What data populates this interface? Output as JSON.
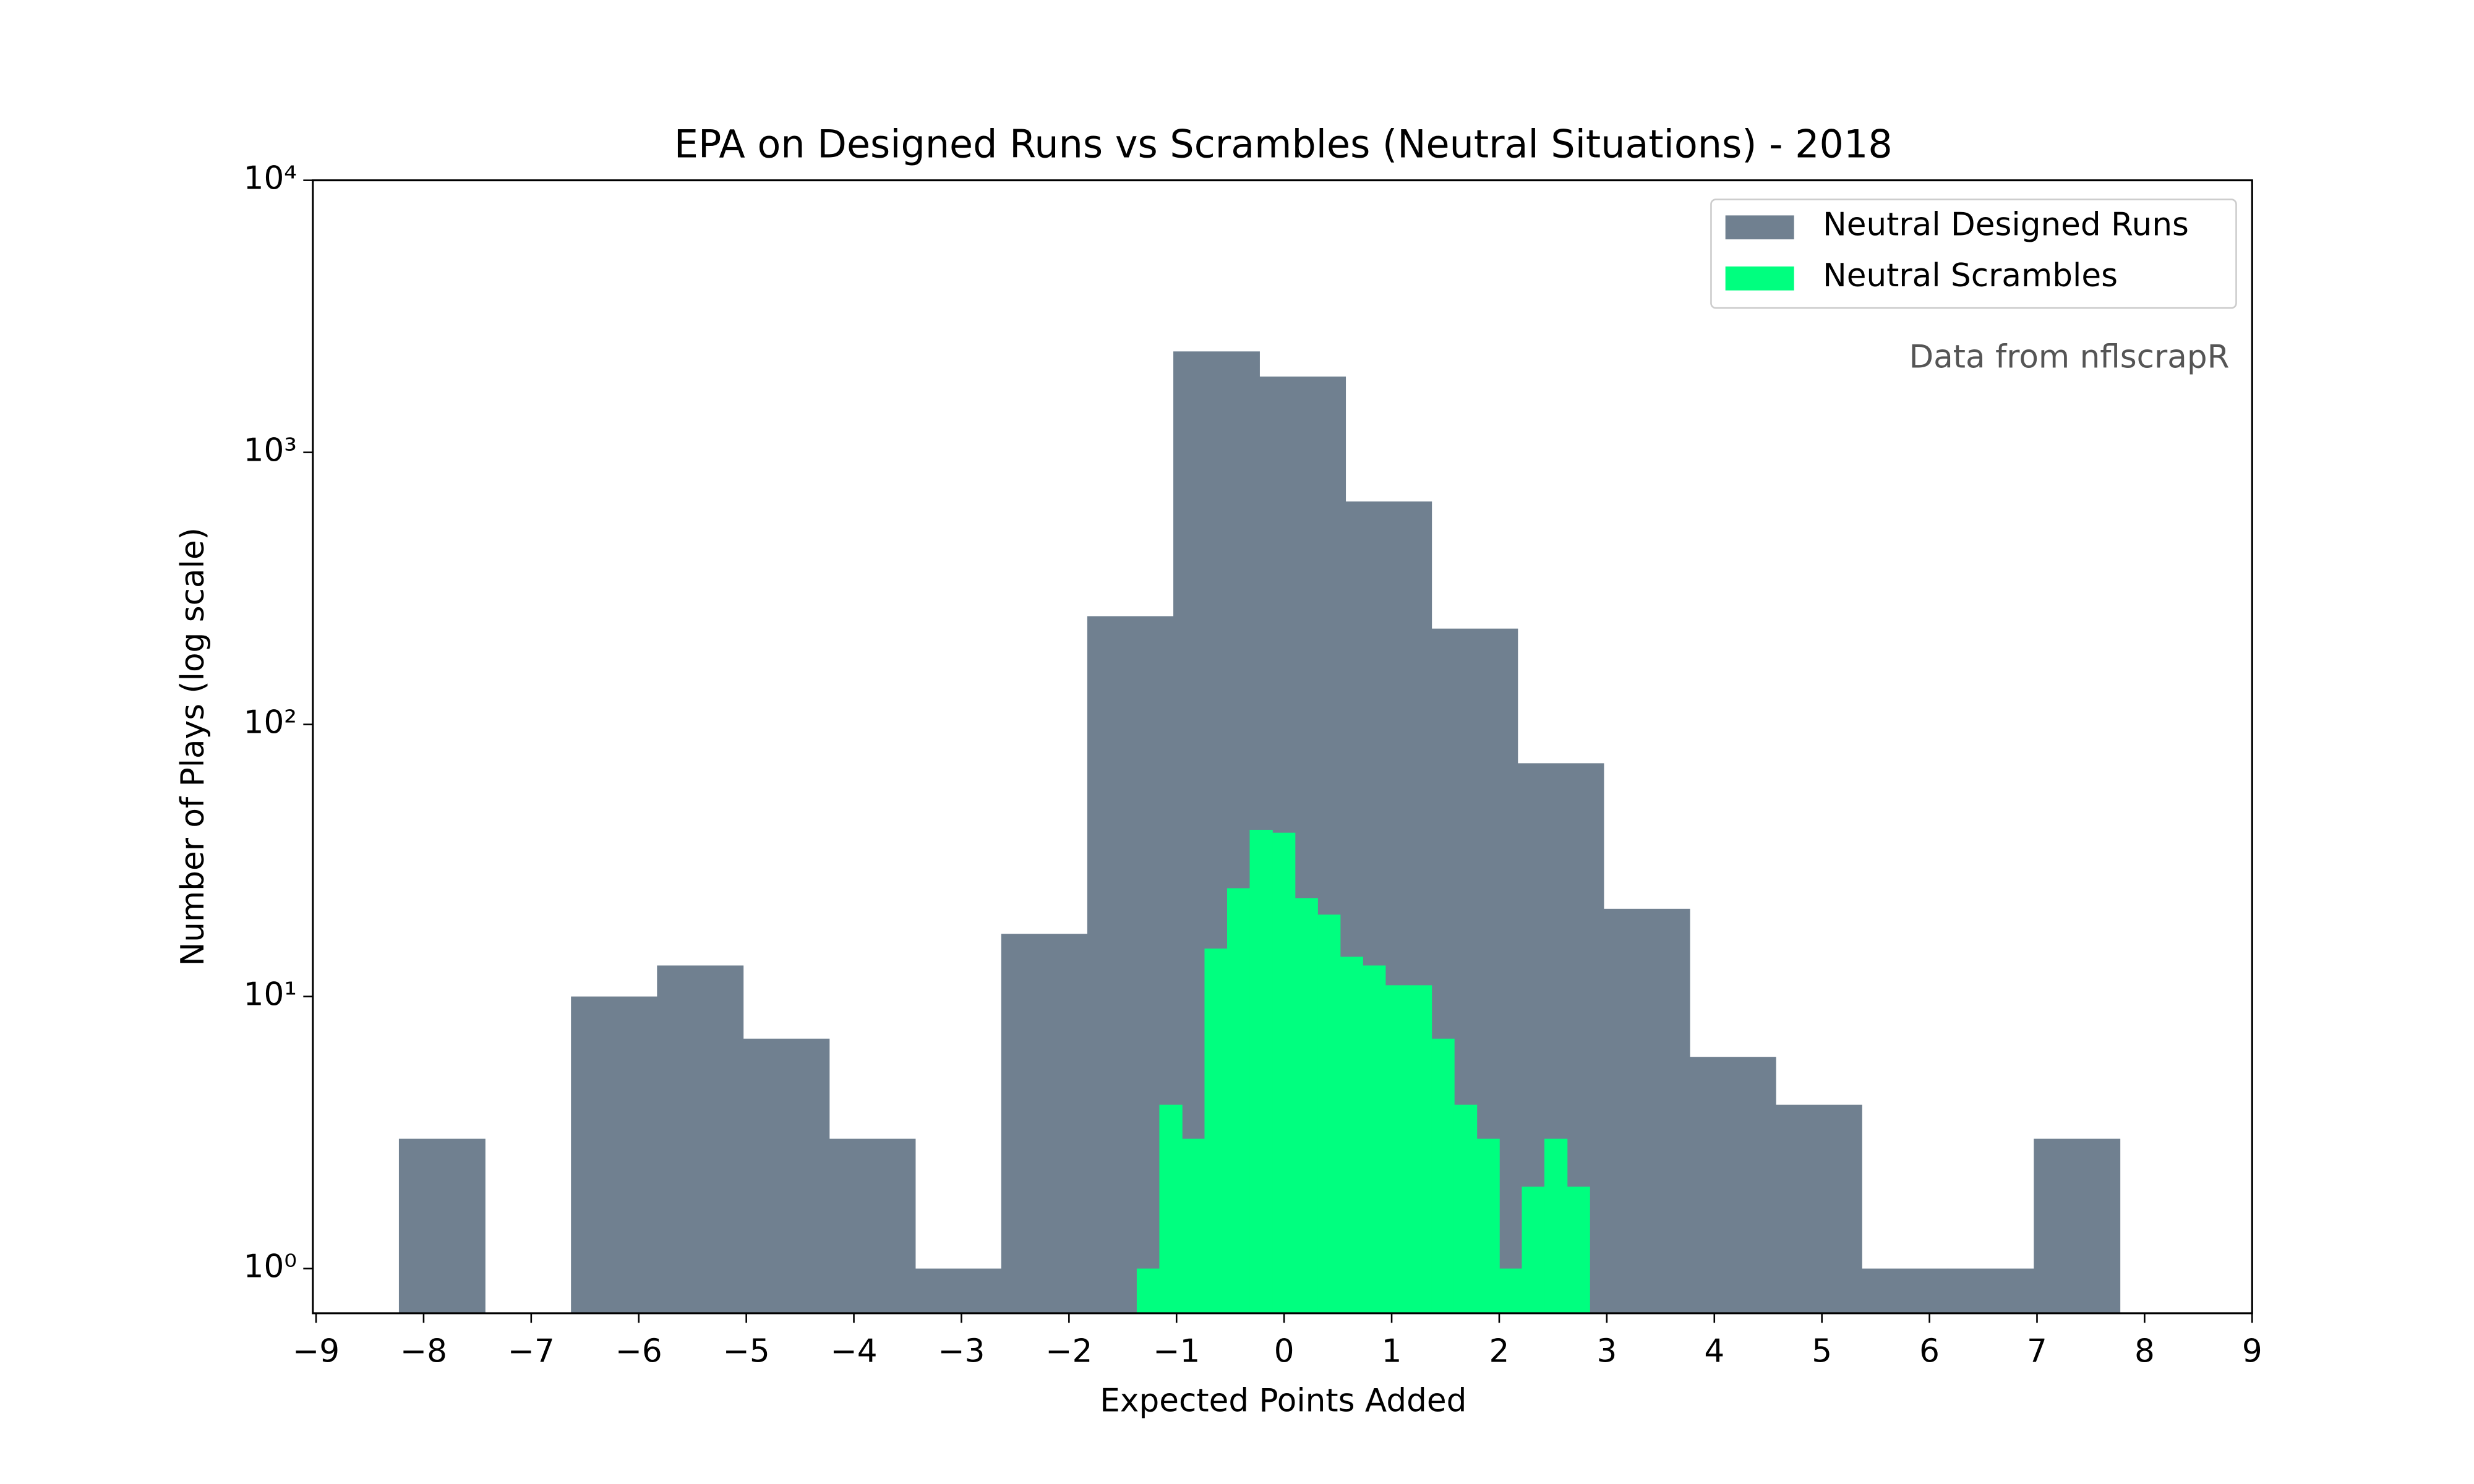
{
  "chart_data": {
    "type": "histogram",
    "title": "EPA on Designed Runs vs Scrambles (Neutral Situations) - 2018",
    "xlabel": "Expected Points Added",
    "ylabel": "Number of Plays (log scale)",
    "annotation": "Data from nflscrapR",
    "yscale": "log",
    "legend": "upper right",
    "xlim": [
      -9.03,
      9.0
    ],
    "ylim": [
      0.685,
      10000
    ],
    "xticks": [
      {
        "value": -9,
        "label": "−9"
      },
      {
        "value": -8,
        "label": "−8"
      },
      {
        "value": -7,
        "label": "−7"
      },
      {
        "value": -6,
        "label": "−6"
      },
      {
        "value": -5,
        "label": "−5"
      },
      {
        "value": -4,
        "label": "−4"
      },
      {
        "value": -3,
        "label": "−3"
      },
      {
        "value": -2,
        "label": "−2"
      },
      {
        "value": -1,
        "label": "−1"
      },
      0,
      1,
      2,
      3,
      4,
      5,
      6,
      7,
      8,
      9
    ],
    "yticks": [
      {
        "value": 1,
        "label": "10⁰"
      },
      {
        "value": 10,
        "label": "10¹"
      },
      {
        "value": 100,
        "label": "10²"
      },
      {
        "value": 1000,
        "label": "10³"
      },
      {
        "value": 10000,
        "label": "10⁴"
      }
    ],
    "series": [
      {
        "name": "Neutral Designed Runs",
        "color": "#708090",
        "bins": [
          -8.23,
          -7.43,
          -6.63,
          -5.83,
          -5.03,
          -4.23,
          -3.43,
          -2.63,
          -1.83,
          -1.03,
          -0.23,
          0.57,
          1.37,
          2.17,
          2.97,
          3.77,
          4.57,
          5.37,
          6.17,
          6.97,
          7.77
        ],
        "values": [
          3,
          0,
          10,
          13,
          7,
          3,
          1,
          17,
          250,
          2350,
          1900,
          660,
          225,
          72,
          21,
          6,
          4,
          1,
          1,
          3
        ]
      },
      {
        "name": "Neutral Scrambles",
        "color": "#00ff7f",
        "bins": [
          -1.37,
          -1.16,
          -0.95,
          -0.74,
          -0.53,
          -0.32,
          -0.11,
          0.1,
          0.31,
          0.52,
          0.73,
          0.94,
          1.15,
          1.37,
          1.58,
          1.79,
          2.0,
          2.21,
          2.42,
          2.63,
          2.84
        ],
        "values": [
          1,
          4,
          3,
          15,
          25,
          41,
          40,
          23,
          20,
          14,
          13,
          11,
          11,
          7,
          4,
          3,
          1,
          2,
          3,
          2
        ]
      }
    ]
  }
}
